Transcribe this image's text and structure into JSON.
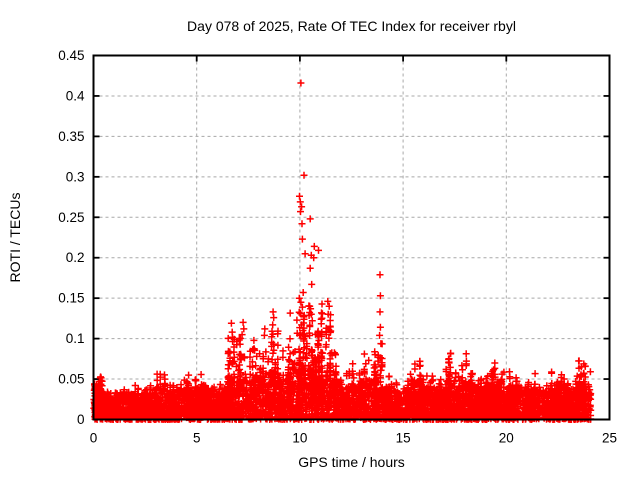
{
  "window": {
    "background_color": "#ffffff",
    "text_color": "#000000"
  },
  "chart_data": {
    "type": "scatter",
    "title": "Day 078 of 2025, Rate Of TEC Index for receiver rbyl",
    "xlabel": "GPS time / hours",
    "ylabel": "ROTI / TECUs",
    "xlim": [
      0,
      25
    ],
    "ylim": [
      0,
      0.45
    ],
    "xticks": [
      0,
      5,
      10,
      15,
      20,
      25
    ],
    "xtick_labels": [
      "0",
      "5",
      "10",
      "15",
      "20",
      "25"
    ],
    "yticks": [
      0,
      0.05,
      0.1,
      0.15,
      0.2,
      0.25,
      0.3,
      0.35,
      0.4,
      0.45
    ],
    "ytick_labels": [
      "0",
      "0.05",
      "0.1",
      "0.15",
      "0.2",
      "0.25",
      "0.3",
      "0.35",
      "0.4",
      "0.45"
    ],
    "grid": true,
    "grid_style": "dashed",
    "legend": "none",
    "marker": "plus",
    "marker_color": "#ff0000",
    "grid_color": "#a8a8a8",
    "axis_color": "#000000",
    "data_hour_range": [
      0,
      24.1
    ],
    "peak_points": [
      [
        10.05,
        0.416
      ],
      [
        10.2,
        0.302
      ],
      [
        9.98,
        0.276
      ],
      [
        10.02,
        0.269
      ],
      [
        10.08,
        0.263
      ],
      [
        10.03,
        0.257
      ],
      [
        10.5,
        0.248
      ],
      [
        10.1,
        0.242
      ],
      [
        10.12,
        0.223
      ],
      [
        10.7,
        0.214
      ],
      [
        10.9,
        0.209
      ],
      [
        10.25,
        0.205
      ],
      [
        10.55,
        0.203
      ],
      [
        10.67,
        0.2
      ],
      [
        10.5,
        0.187
      ],
      [
        10.57,
        0.167
      ],
      [
        10.16,
        0.157
      ],
      [
        9.97,
        0.15
      ],
      [
        10.05,
        0.145
      ],
      [
        10.12,
        0.139
      ],
      [
        10.02,
        0.131
      ],
      [
        10.2,
        0.124
      ],
      [
        10.08,
        0.117
      ],
      [
        10.15,
        0.11
      ],
      [
        10.1,
        0.104
      ],
      [
        10.52,
        0.137
      ],
      [
        10.55,
        0.13
      ],
      [
        10.6,
        0.122
      ],
      [
        10.48,
        0.115
      ],
      [
        11.35,
        0.146
      ],
      [
        11.42,
        0.14
      ],
      [
        11.37,
        0.13
      ],
      [
        11.4,
        0.111
      ],
      [
        13.88,
        0.179
      ],
      [
        13.9,
        0.153
      ],
      [
        13.88,
        0.133
      ],
      [
        13.9,
        0.114
      ],
      [
        13.86,
        0.104
      ],
      [
        8.7,
        0.133
      ],
      [
        8.73,
        0.126
      ],
      [
        8.68,
        0.117
      ],
      [
        8.65,
        0.109
      ],
      [
        7.25,
        0.12
      ],
      [
        7.28,
        0.112
      ],
      [
        7.2,
        0.105
      ],
      [
        6.68,
        0.119
      ],
      [
        6.72,
        0.108
      ],
      [
        8.3,
        0.112
      ],
      [
        8.28,
        0.104
      ]
    ],
    "baseline_envelope": {
      "bin_hours": 0.5,
      "start_hour": 0,
      "peaks": [
        0.06,
        0.042,
        0.048,
        0.04,
        0.05,
        0.046,
        0.068,
        0.055,
        0.056,
        0.058,
        0.06,
        0.05,
        0.062,
        0.11,
        0.122,
        0.105,
        0.105,
        0.133,
        0.098,
        0.15,
        0.16,
        0.14,
        0.146,
        0.1,
        0.072,
        0.082,
        0.096,
        0.112,
        0.065,
        0.056,
        0.06,
        0.092,
        0.056,
        0.06,
        0.093,
        0.076,
        0.086,
        0.062,
        0.076,
        0.066,
        0.068,
        0.072,
        0.06,
        0.056,
        0.062,
        0.066,
        0.06,
        0.08
      ]
    },
    "generator": {
      "seed": 78,
      "base_points": 3400,
      "base_exp": 1.6,
      "columns": 430,
      "column_pts_min": 3,
      "column_pts_max": 9
    }
  }
}
